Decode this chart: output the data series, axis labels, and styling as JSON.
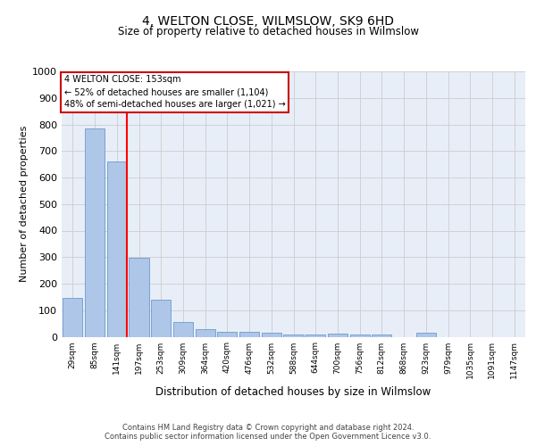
{
  "title": "4, WELTON CLOSE, WILMSLOW, SK9 6HD",
  "subtitle": "Size of property relative to detached houses in Wilmslow",
  "xlabel": "Distribution of detached houses by size in Wilmslow",
  "ylabel": "Number of detached properties",
  "categories": [
    "29sqm",
    "85sqm",
    "141sqm",
    "197sqm",
    "253sqm",
    "309sqm",
    "364sqm",
    "420sqm",
    "476sqm",
    "532sqm",
    "588sqm",
    "644sqm",
    "700sqm",
    "756sqm",
    "812sqm",
    "868sqm",
    "923sqm",
    "979sqm",
    "1035sqm",
    "1091sqm",
    "1147sqm"
  ],
  "values": [
    145,
    785,
    660,
    297,
    140,
    57,
    30,
    20,
    17,
    14,
    8,
    10,
    11,
    10,
    8,
    0,
    14,
    0,
    0,
    0,
    0
  ],
  "bar_color": "#aec6e8",
  "bar_edge_color": "#5a8fc2",
  "red_line_index": 2,
  "annotation_title": "4 WELTON CLOSE: 153sqm",
  "annotation_line1": "← 52% of detached houses are smaller (1,104)",
  "annotation_line2": "48% of semi-detached houses are larger (1,021) →",
  "annotation_box_color": "#ffffff",
  "annotation_box_edge": "#cc0000",
  "ylim": [
    0,
    1000
  ],
  "yticks": [
    0,
    100,
    200,
    300,
    400,
    500,
    600,
    700,
    800,
    900,
    1000
  ],
  "grid_color": "#cccccc",
  "background_color": "#e8eef8",
  "footer_line1": "Contains HM Land Registry data © Crown copyright and database right 2024.",
  "footer_line2": "Contains public sector information licensed under the Open Government Licence v3.0."
}
